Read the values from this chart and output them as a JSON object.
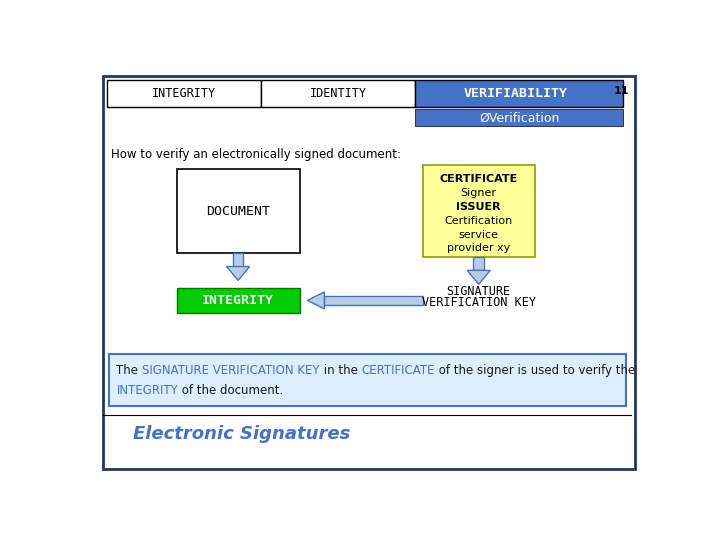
{
  "title_bar": {
    "integrity": "INTEGRITY",
    "identity": "IDENTITY",
    "verifiability": "VERIFIABILITY",
    "verification": "ØVerification",
    "slide_num": "11"
  },
  "main_text": "How to verify an electronically signed document:",
  "document_label": "DOCUMENT",
  "certificate_lines": [
    "CERTIFICATE",
    "Signer",
    "ISSUER",
    "Certification",
    "service",
    "provider xy"
  ],
  "certificate_bold": [
    "CERTIFICATE",
    "ISSUER"
  ],
  "integrity_label": "INTEGRITY",
  "sig_key_lines": [
    "SIGNATURE",
    "VERIFICATION KEY"
  ],
  "bottom_line1": [
    {
      "text": "The ",
      "color": "#1a1a1a"
    },
    {
      "text": "SIGNATURE VERIFICATION KEY",
      "color": "#4472c4"
    },
    {
      "text": " in the ",
      "color": "#1a1a1a"
    },
    {
      "text": "CERTIFICATE",
      "color": "#4472c4"
    },
    {
      "text": " of the signer is used to verify the",
      "color": "#1a1a1a"
    }
  ],
  "bottom_line2": [
    {
      "text": "INTEGRITY",
      "color": "#4472c4"
    },
    {
      "text": " of the document.",
      "color": "#1a1a1a"
    }
  ],
  "footer_text": "Electronic Signatures",
  "colors": {
    "background": "#ffffff",
    "outer_border": "#1f3864",
    "blue": "#4472c4",
    "white": "#ffffff",
    "black": "#000000",
    "cert_bg": "#ffff99",
    "cert_border": "#999900",
    "green": "#00cc00",
    "green_border": "#007700",
    "arrow_fill": "#b8cce4",
    "arrow_border": "#4472c4",
    "box_bg": "#ddeeff",
    "box_border": "#4472c4"
  }
}
